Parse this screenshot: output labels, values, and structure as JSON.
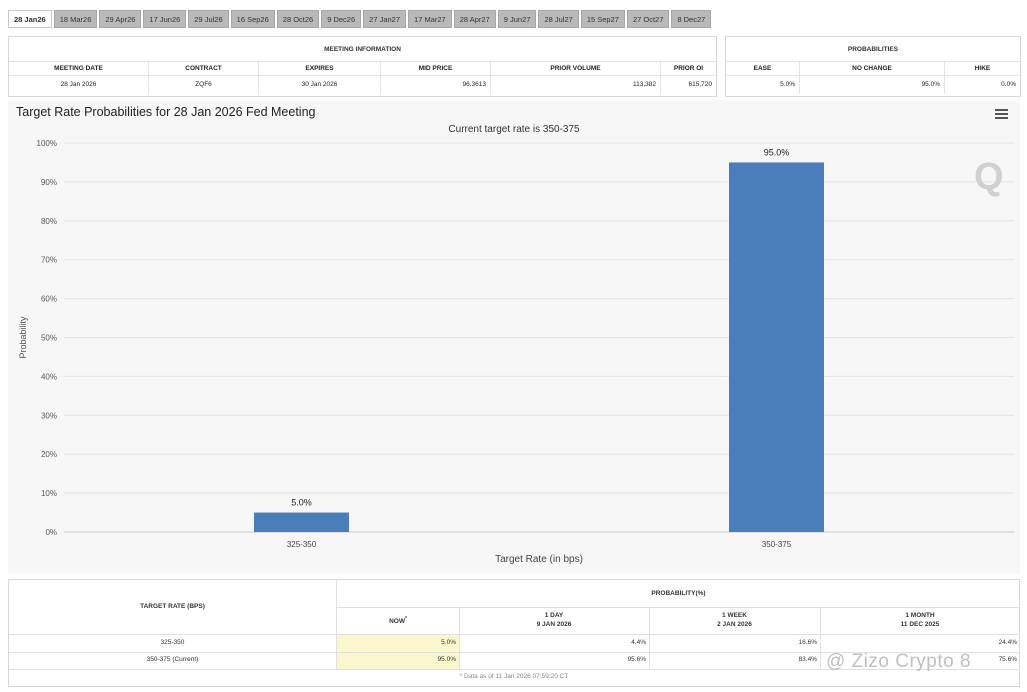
{
  "tabs": [
    "28 Jan26",
    "18 Mar26",
    "29 Apr26",
    "17 Jun26",
    "29 Jul26",
    "16 Sep26",
    "28 Oct26",
    "9 Dec26",
    "27 Jan27",
    "17 Mar27",
    "28 Apr27",
    "9 Jun27",
    "28 Jul27",
    "15 Sep27",
    "27 Oct27",
    "8 Dec27"
  ],
  "meeting_info": {
    "title": "MEETING INFORMATION",
    "headers": [
      "MEETING DATE",
      "CONTRACT",
      "EXPIRES",
      "MID PRICE",
      "PRIOR VOLUME",
      "PRIOR OI"
    ],
    "values": [
      "28 Jan 2026",
      "ZQF6",
      "30 Jan 2026",
      "96.3613",
      "113,382",
      "615,720"
    ]
  },
  "probabilities": {
    "title": "PROBABILITIES",
    "headers": [
      "EASE",
      "NO CHANGE",
      "HIKE"
    ],
    "values": [
      "5.0%",
      "95.0%",
      "0.0%"
    ]
  },
  "chart_title": "Target Rate Probabilities for 28 Jan 2026 Fed Meeting",
  "chart_subtitle": "Current target rate is 350-375",
  "chart_data": {
    "type": "bar",
    "categories": [
      "325-350",
      "350-375"
    ],
    "values": [
      5.0,
      95.0
    ],
    "data_labels": [
      "5.0%",
      "95.0%"
    ],
    "xlabel": "Target Rate (in bps)",
    "ylabel": "Probability",
    "ylim": [
      0,
      100
    ],
    "yticks": [
      "0%",
      "10%",
      "20%",
      "30%",
      "40%",
      "50%",
      "60%",
      "70%",
      "80%",
      "90%",
      "100%"
    ],
    "grid": true,
    "bar_color": "#4a7ebb"
  },
  "bottom_table": {
    "col1_header": "TARGET RATE (BPS)",
    "prob_header": "PROBABILITY(%)",
    "sub_headers": [
      {
        "line1": "NOW",
        "line2": ""
      },
      {
        "line1": "1 DAY",
        "line2": "9 JAN 2026"
      },
      {
        "line1": "1 WEEK",
        "line2": "2 JAN 2026"
      },
      {
        "line1": "1 MONTH",
        "line2": "11 DEC 2025"
      }
    ],
    "now_marker": "*",
    "rows": [
      {
        "rate": "325-350",
        "vals": [
          "5.0%",
          "4.4%",
          "16.6%",
          "24.4%"
        ]
      },
      {
        "rate": "350-375 (Current)",
        "vals": [
          "95.0%",
          "95.6%",
          "83.4%",
          "75.6%"
        ]
      }
    ],
    "footnote": "* Data as of 11 Jan 2026 07:59:20 CT"
  },
  "watermark": "@ Zizo Crypto 8",
  "watermark_logo": "Q",
  "colors": {
    "bar": "#4a7ebb",
    "highlight": "#fbf7cc",
    "panel_bg": "#f7f7f7"
  }
}
